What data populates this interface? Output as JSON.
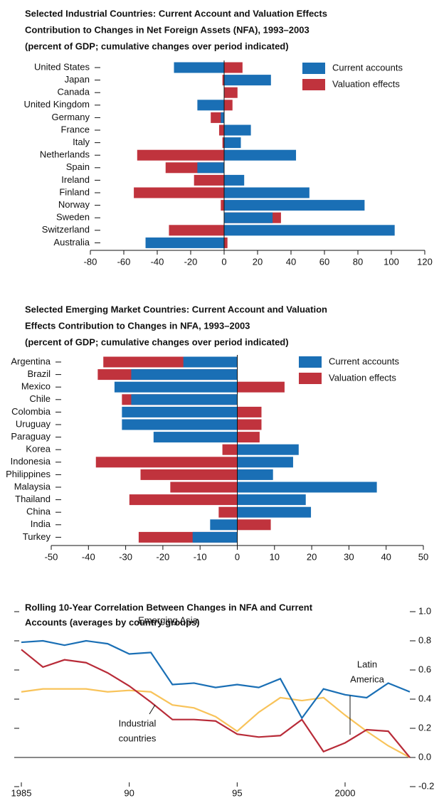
{
  "chart_data": [
    {
      "type": "hbar",
      "title": [
        "Selected Industrial Countries: Current Account and Valuation Effects",
        "Contribution to Changes in Net Foreign Assets (NFA), 1993–2003",
        "(percent of GDP; cumulative changes over period indicated)"
      ],
      "categories": [
        "United States",
        "Japan",
        "Canada",
        "United Kingdom",
        "Germany",
        "France",
        "Italy",
        "Netherlands",
        "Spain",
        "Ireland",
        "Finland",
        "Norway",
        "Sweden",
        "Switzerland",
        "Australia"
      ],
      "series": [
        {
          "name": "Valuation effects",
          "color": "#c0333d",
          "values": [
            11,
            -1,
            8,
            5,
            -8,
            -3,
            -1,
            -52,
            -35,
            -18,
            -54,
            -2,
            34,
            -33,
            2
          ]
        },
        {
          "name": "Current accounts",
          "color": "#1a6fb5",
          "values": [
            -30,
            28,
            0,
            -16,
            -2,
            16,
            10,
            43,
            -16,
            12,
            51,
            84,
            29,
            102,
            -47
          ]
        }
      ],
      "xlim": [
        -80,
        120
      ],
      "xticks": [
        -80,
        -60,
        -40,
        -20,
        0,
        20,
        40,
        60,
        80,
        100,
        120
      ]
    },
    {
      "type": "hbar",
      "title": [
        "Selected Emerging Market Countries: Current Account and Valuation",
        "Effects Contribution to Changes in NFA, 1993–2003",
        "(percent of GDP; cumulative changes over period indicated)"
      ],
      "categories": [
        "Argentina",
        "Brazil",
        "Mexico",
        "Chile",
        "Colombia",
        "Uruguay",
        "Paraguay",
        "Korea",
        "Indonesia",
        "Philippines",
        "Malaysia",
        "Thailand",
        "China",
        "India",
        "Turkey"
      ],
      "series": [
        {
          "name": "Valuation effects",
          "color": "#c0333d",
          "values": [
            -36,
            -37.5,
            12.7,
            -31,
            6.5,
            6.5,
            6,
            -4,
            -38,
            -26,
            -18,
            -29,
            -5,
            9,
            -26.5
          ]
        },
        {
          "name": "Current accounts",
          "color": "#1a6fb5",
          "values": [
            -14.5,
            -28.5,
            -33,
            -28.5,
            -31,
            -31,
            -22.5,
            16.5,
            15,
            9.6,
            37.5,
            18.4,
            19.8,
            -7.3,
            -12
          ]
        }
      ],
      "xlim": [
        -50,
        50
      ],
      "xticks": [
        -50,
        -40,
        -30,
        -20,
        -10,
        0,
        10,
        20,
        30,
        40,
        50
      ]
    },
    {
      "type": "line",
      "title": [
        "Rolling 10-Year Correlation Between Changes in NFA and Current",
        "Accounts (averages by country groups)"
      ],
      "x": [
        1985,
        1986,
        1987,
        1988,
        1989,
        1990,
        1991,
        1992,
        1993,
        1994,
        1995,
        1996,
        1997,
        1998,
        1999,
        2000,
        2001,
        2002,
        2003
      ],
      "series": [
        {
          "name": [
            "Latin",
            "America"
          ],
          "color": "#f8c35a",
          "values": [
            0.45,
            0.47,
            0.47,
            0.47,
            0.45,
            0.46,
            0.45,
            0.36,
            0.34,
            0.28,
            0.18,
            0.31,
            0.41,
            0.39,
            0.41,
            0.29,
            0.18,
            0.08,
            0.0
          ]
        },
        {
          "name": [
            "Industrial",
            "countries"
          ],
          "color": "#b82b38",
          "values": [
            0.74,
            0.62,
            0.67,
            0.65,
            0.58,
            0.49,
            0.38,
            0.26,
            0.26,
            0.25,
            0.16,
            0.14,
            0.15,
            0.26,
            0.04,
            0.1,
            0.19,
            0.18,
            0.0
          ]
        },
        {
          "name": [
            "Emerging Asia"
          ],
          "color": "#1a6fb5",
          "values": [
            0.79,
            0.8,
            0.77,
            0.8,
            0.78,
            0.71,
            0.72,
            0.5,
            0.51,
            0.48,
            0.5,
            0.48,
            0.54,
            0.27,
            0.47,
            0.43,
            0.41,
            0.51,
            0.45
          ]
        }
      ],
      "xlim": [
        1985,
        2003
      ],
      "xticks": [
        1985,
        {
          "value": 1990,
          "label": "90"
        },
        {
          "value": 1995,
          "label": "95"
        },
        2000
      ],
      "ylim": [
        -0.2,
        1.0
      ],
      "yticks": [
        -0.2,
        {
          "value": 0,
          "label": "0.0"
        },
        0.2,
        0.4,
        0.6,
        0.8,
        {
          "value": 1.0,
          "label": "1.0"
        }
      ]
    }
  ]
}
